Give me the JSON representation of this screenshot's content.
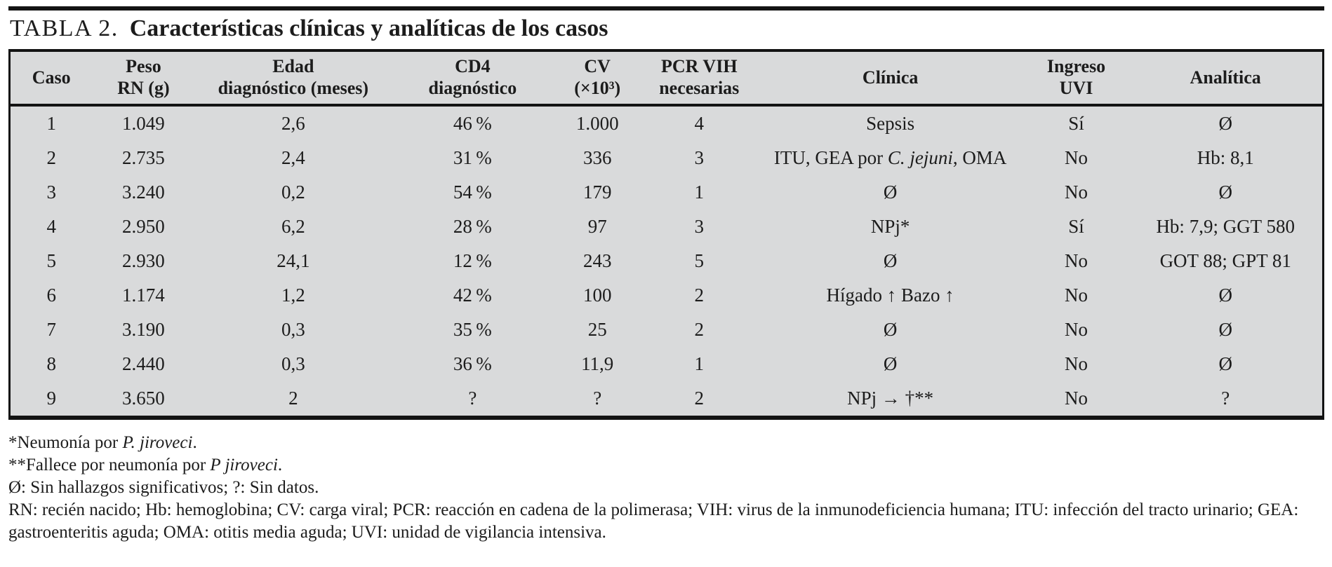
{
  "title": {
    "label": "TABLA 2.",
    "text": "Características clínicas y analíticas de los casos"
  },
  "colors": {
    "table_background": "#d9dadb",
    "rule_and_border": "#131313",
    "text": "#1c1c1c",
    "page_background": "#ffffff"
  },
  "table": {
    "columns": [
      {
        "key": "caso",
        "lines": [
          "Caso"
        ]
      },
      {
        "key": "peso-rn",
        "lines": [
          "Peso",
          "RN (g)"
        ]
      },
      {
        "key": "edad-diagnostico",
        "lines": [
          "Edad",
          "diagnóstico (meses)"
        ]
      },
      {
        "key": "cd4-diagnostico",
        "lines": [
          "CD4",
          "diagnóstico"
        ]
      },
      {
        "key": "cv",
        "lines": [
          "CV",
          "(×10³)"
        ]
      },
      {
        "key": "pcr-vih",
        "lines": [
          "PCR VIH",
          "necesarias"
        ]
      },
      {
        "key": "clinica",
        "lines": [
          "Clínica"
        ]
      },
      {
        "key": "ingreso-uvi",
        "lines": [
          "Ingreso",
          "UVI"
        ]
      },
      {
        "key": "analitica",
        "lines": [
          "Analítica"
        ]
      }
    ],
    "rows": [
      [
        "1",
        "1.049",
        "2,6",
        "46 %",
        "1.000",
        "4",
        "Sepsis",
        "Sí",
        "Ø"
      ],
      [
        "2",
        "2.735",
        "2,4",
        "31 %",
        "336",
        "3",
        [
          {
            "t": "ITU, GEA por "
          },
          {
            "t": "C. jejuni",
            "i": true
          },
          {
            "t": ", OMA"
          }
        ],
        "No",
        "Hb: 8,1"
      ],
      [
        "3",
        "3.240",
        "0,2",
        "54 %",
        "179",
        "1",
        "Ø",
        "No",
        "Ø"
      ],
      [
        "4",
        "2.950",
        "6,2",
        "28 %",
        "97",
        "3",
        "NPj*",
        "Sí",
        "Hb: 7,9; GGT 580"
      ],
      [
        "5",
        "2.930",
        "24,1",
        "12 %",
        "243",
        "5",
        "Ø",
        "No",
        "GOT 88; GPT 81"
      ],
      [
        "6",
        "1.174",
        "1,2",
        "42 %",
        "100",
        "2",
        "Hígado ↑ Bazo ↑",
        "No",
        "Ø"
      ],
      [
        "7",
        "3.190",
        "0,3",
        "35 %",
        "25",
        "2",
        "Ø",
        "No",
        "Ø"
      ],
      [
        "8",
        "2.440",
        "0,3",
        "36 %",
        "11,9",
        "1",
        "Ø",
        "No",
        "Ø"
      ],
      [
        "9",
        "3.650",
        "2",
        "?",
        "?",
        "2",
        "NPj → †**",
        "No",
        "?"
      ]
    ]
  },
  "footnotes": [
    [
      {
        "t": "*Neumonía por "
      },
      {
        "t": "P. jiroveci",
        "i": true
      },
      {
        "t": "."
      }
    ],
    [
      {
        "t": "**Fallece por neumonía por "
      },
      {
        "t": "P jiroveci",
        "i": true
      },
      {
        "t": "."
      }
    ],
    [
      {
        "t": "Ø: Sin hallazgos significativos; ?: Sin datos."
      }
    ],
    [
      {
        "t": "RN: recién nacido; Hb: hemoglobina; CV: carga viral; PCR: reacción en cadena de la polimerasa; VIH: virus de la inmunodeficiencia humana; ITU: infección del tracto urinario; GEA: gastroenteritis aguda; OMA: otitis media aguda; UVI: unidad de vigilancia intensiva."
      }
    ]
  ]
}
